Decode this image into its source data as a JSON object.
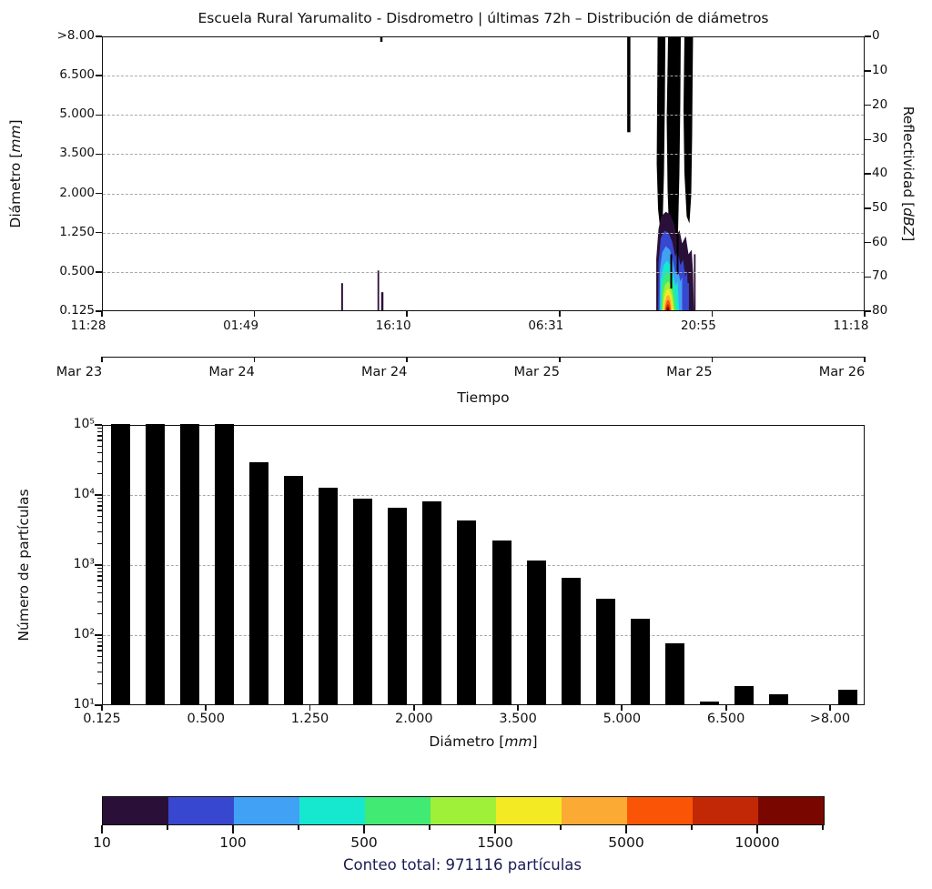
{
  "title": "Escuela Rural Yarumalito - Disdrometro | últimas 72h – Distribución de diámetros",
  "caption": "Conteo total: 971116 partículas",
  "labels": {
    "diameter": {
      "pre": "Diámetro [",
      "it": "mm",
      "post": "]"
    },
    "reflectivity": {
      "pre": "Reflectividad [",
      "it": "dBZ",
      "post": "]"
    },
    "count": "Número de partículas",
    "time": "Tiempo"
  },
  "top_panel": {
    "yticks_left": [
      ">8.00",
      "6.500",
      "5.000",
      "3.500",
      "2.000",
      "1.250",
      "0.500",
      "0.125"
    ],
    "yticks_right": [
      "0",
      "10",
      "20",
      "30",
      "40",
      "50",
      "60",
      "70",
      "80"
    ],
    "xticks_time": [
      "11:28",
      "01:49",
      "16:10",
      "06:31",
      "20:55",
      "11:18"
    ],
    "xticks_date": [
      "Mar 23",
      "Mar 24",
      "Mar 24",
      "Mar 25",
      "Mar 25",
      "Mar 26"
    ]
  },
  "bottom_panel": {
    "yticks": [
      "10⁵",
      "10⁴",
      "10³",
      "10²",
      "10¹"
    ],
    "xticks": [
      "0.125",
      "0.500",
      "1.250",
      "2.000",
      "3.500",
      "5.000",
      "6.500",
      ">8.00"
    ]
  },
  "colorbar": {
    "colors": [
      "#2a1038",
      "#3747cf",
      "#41a1f5",
      "#16e7cf",
      "#41ea73",
      "#9ef038",
      "#f4ea23",
      "#fbaa33",
      "#fa5507",
      "#c22706",
      "#790700"
    ],
    "tick_labels": [
      "10",
      "100",
      "500",
      "1500",
      "5000",
      "10000"
    ],
    "tick_boundaries": [
      0,
      2,
      4,
      6,
      8,
      10
    ],
    "minor_boundaries": [
      1,
      3,
      5,
      7,
      9,
      11
    ]
  },
  "colors": {
    "bar": "#000000",
    "grid": "#a9a9a9",
    "axis": "#111111",
    "caption_text": "#1b1b55",
    "trace": "#000000"
  },
  "chart_data": [
    {
      "type": "heatmap",
      "title": "Escuela Rural Yarumalito - Disdrometro | últimas 72h – Distribución de diámetros",
      "xlabel": "Tiempo",
      "ylabel": "Diámetro [mm]",
      "y2label": "Reflectividad [dBZ]",
      "x_range": "Mar 23 11:28 to Mar 26 11:18 (72 h), 6 evenly spaced ticks",
      "x_tick_times": [
        "11:28",
        "01:49",
        "16:10",
        "06:31",
        "20:55",
        "11:18"
      ],
      "x_tick_dates": [
        "Mar 23",
        "Mar 24",
        "Mar 24",
        "Mar 25",
        "Mar 25",
        "Mar 26"
      ],
      "y_tick_diameters_mm": [
        0.125,
        0.5,
        1.25,
        2.0,
        3.5,
        5.0,
        6.5,
        8.0
      ],
      "y_axis_note": "categorical disdrometer diameter classes, 0.125 mm at bottom to >8.00 mm at top",
      "y2_range_dbz": [
        0,
        80
      ],
      "y2_inverted": true,
      "grid": "dashed horizontal lines at diameter ticks",
      "colormap_levels": [
        10,
        30,
        100,
        250,
        500,
        1000,
        1500,
        3000,
        5000,
        7500,
        10000
      ],
      "events": [
        {
          "time_approx": "Mar 24 ~13:00",
          "detail": "trace counts (lowest level), diameters 0.125-0.35 mm"
        },
        {
          "time_approx": "Mar 24 ~15:30-16:00",
          "detail": "two trace-count spikes, diameters 0.125-0.45 mm"
        },
        {
          "time_approx": "Mar 25 ~14:30",
          "detail": "brief reflectivity spike from 0 to ~28 dBZ"
        },
        {
          "time_approx": "Mar 25 ~19:30-20:45",
          "detail": "main rain event: counts >10000 (red core) at 0.125-0.5 mm, colored contours up to ~2 mm, dark contour/reflectivity trace oscillating ~0-60 dBZ"
        }
      ]
    },
    {
      "type": "bar",
      "title": "Particle size distribution (72 h totals)",
      "xlabel": "Diámetro [mm]",
      "ylabel": "Número de partículas",
      "yscale": "log",
      "ylim": [
        10,
        100000
      ],
      "grid": "dashed horizontal at 10^2, 10^3, 10^4",
      "categories": [
        "0.125-0.250",
        "0.250-0.375",
        "0.375-0.500",
        "0.500-0.750",
        "0.750-1.000",
        "1.000-1.250",
        "1.250-1.500",
        "1.500-1.750",
        "1.750-2.000",
        "2.000-2.500",
        "2.500-3.000",
        "3.000-3.500",
        "3.500-4.000",
        "4.000-4.500",
        "4.500-5.000",
        "5.000-5.500",
        "5.500-6.000",
        "6.000-6.500",
        "6.500-7.000",
        "7.000-7.500",
        "7.500-8.000",
        ">8.000"
      ],
      "values": [
        100000,
        100000,
        100000,
        100000,
        28500,
        18200,
        12400,
        8700,
        6300,
        7900,
        4200,
        2200,
        1120,
        630,
        320,
        165,
        75,
        11,
        18,
        14,
        0,
        16
      ],
      "values_note": "first four bars reach the axis top (>=10^5, clipped); values read from log axis, approximate",
      "xtick_edge_labels": [
        "0.125",
        "0.500",
        "1.250",
        "2.000",
        "3.500",
        "5.000",
        "6.500",
        ">8.00"
      ],
      "total_particles": 971116
    },
    {
      "type": "colorbar",
      "label": "Conteo total: 971116 partículas",
      "ticks": [
        10,
        100,
        500,
        1500,
        5000,
        10000
      ],
      "colors": [
        "#2a1038",
        "#3747cf",
        "#41a1f5",
        "#16e7cf",
        "#41ea73",
        "#9ef038",
        "#f4ea23",
        "#fbaa33",
        "#fa5507",
        "#c22706",
        "#790700"
      ]
    }
  ]
}
